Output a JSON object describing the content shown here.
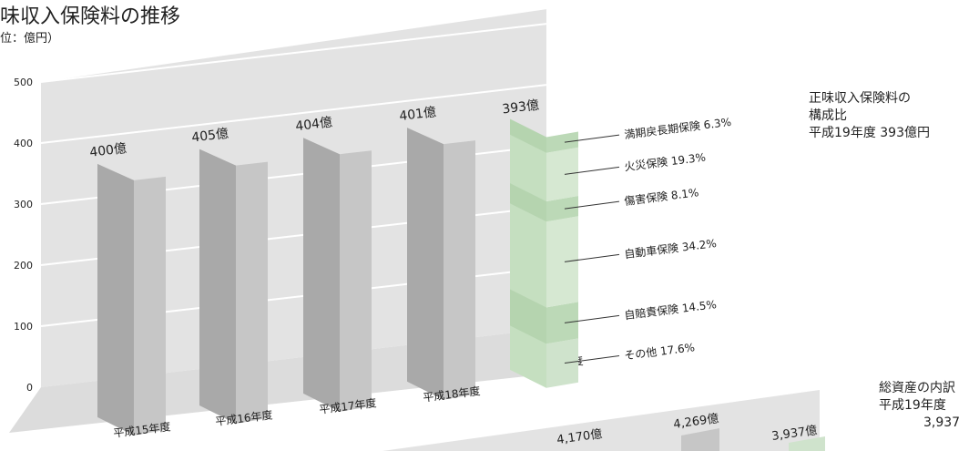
{
  "chart_data": [
    {
      "type": "bar",
      "title": "味収入保険料の推移",
      "subtitle": "位：億円）",
      "categories": [
        "平成15年度",
        "平成16年度",
        "平成17年度",
        "平成18年度",
        "平成19年度"
      ],
      "values": [
        400,
        405,
        404,
        401,
        393
      ],
      "value_labels": [
        "400億",
        "405億",
        "404億",
        "401億",
        "393億"
      ],
      "ylim": [
        0,
        500
      ],
      "yticks": [
        0,
        100,
        200,
        300,
        400,
        500
      ],
      "grid": true,
      "composition": {
        "title_lines": [
          "正味収入保険料の",
          "構成比",
          "平成19年度 393億円"
        ],
        "segments": [
          {
            "label": "その他",
            "percent": "17.6%",
            "value": 17.6,
            "color": "#cfe3cc"
          },
          {
            "label": "自賠責保険",
            "percent": "14.5%",
            "value": 14.5,
            "color": "#bcd9b7"
          },
          {
            "label": "自動車保険",
            "percent": "34.2%",
            "value": 34.2,
            "color": "#d6e8d2"
          },
          {
            "label": "傷害保険",
            "percent": "8.1%",
            "value": 8.1,
            "color": "#bcd9b7"
          },
          {
            "label": "火災保険",
            "percent": "19.3%",
            "value": 19.3,
            "color": "#d6e8d2"
          },
          {
            "label": "満期戻長期保険",
            "percent": "6.3%",
            "value": 6.3,
            "color": "#bcd9b7"
          }
        ]
      }
    },
    {
      "type": "bar",
      "title": "総資産の内訳",
      "subtitle_lines": [
        "平成19年度",
        "3,937"
      ],
      "value_labels": [
        "4,170億",
        "4,269億",
        "3,937億"
      ],
      "values": [
        4170,
        4269,
        3937
      ]
    }
  ],
  "colors": {
    "bar_front": "#c6c6c6",
    "bar_side": "#a9a9a9",
    "bar_top": "#dcdcdc",
    "wall": "#e3e3e3",
    "floor": "#dedede",
    "green_accent": "#b5d4af"
  }
}
